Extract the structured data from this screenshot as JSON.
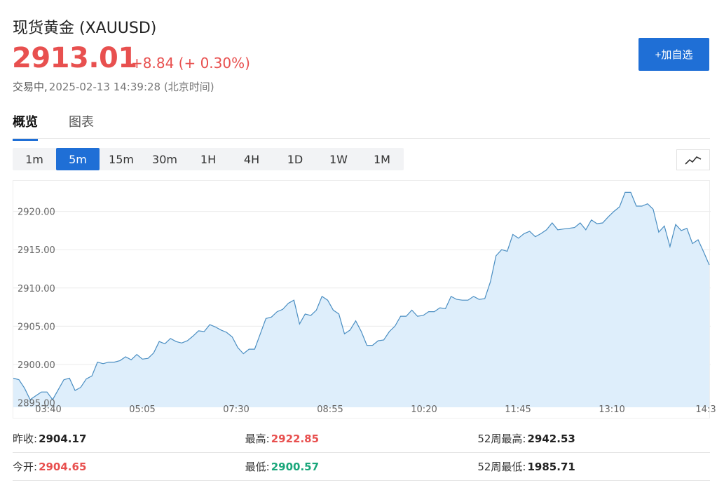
{
  "header": {
    "title": "现货黄金 (XAUUSD)",
    "price": "2913.01",
    "change": "+8.84 (+ 0.30%)",
    "status": "交易中,",
    "timestamp": "2025-02-13 14:39:28 (北京时间)",
    "add_watchlist_label": "+加自选"
  },
  "tabs": [
    {
      "label": "概览",
      "active": true
    },
    {
      "label": "图表",
      "active": false
    }
  ],
  "intervals": [
    {
      "label": "1m",
      "active": false
    },
    {
      "label": "5m",
      "active": true
    },
    {
      "label": "15m",
      "active": false
    },
    {
      "label": "30m",
      "active": false
    },
    {
      "label": "1H",
      "active": false
    },
    {
      "label": "4H",
      "active": false
    },
    {
      "label": "1D",
      "active": false
    },
    {
      "label": "1W",
      "active": false
    },
    {
      "label": "1M",
      "active": false
    }
  ],
  "chart_type_icon": "line-chart-icon",
  "colors": {
    "up": "#e8504f",
    "down": "#1aa77b",
    "accent": "#1f6fd6",
    "line": "#4a8ec2",
    "area": "#deeefb"
  },
  "chart_data": {
    "type": "area",
    "x_ticks": [
      "03:40",
      "05:05",
      "07:30",
      "08:55",
      "10:20",
      "11:45",
      "13:10",
      "14:3"
    ],
    "y_ticks": [
      "2895.00",
      "2900.00",
      "2905.00",
      "2910.00",
      "2915.00",
      "2920.00"
    ],
    "ylim": [
      2894.4,
      2924.0
    ],
    "grid": true,
    "values": [
      2898.2,
      2898.0,
      2896.9,
      2895.4,
      2895.9,
      2896.4,
      2896.4,
      2895.4,
      2896.7,
      2898.0,
      2898.2,
      2896.6,
      2897.0,
      2898.1,
      2898.5,
      2900.3,
      2900.1,
      2900.3,
      2900.3,
      2900.5,
      2901.0,
      2900.6,
      2901.3,
      2900.7,
      2900.8,
      2901.5,
      2903.0,
      2902.7,
      2903.4,
      2903.0,
      2902.8,
      2903.1,
      2903.7,
      2904.4,
      2904.3,
      2905.2,
      2904.9,
      2904.5,
      2904.2,
      2903.6,
      2902.2,
      2901.4,
      2902.0,
      2902.0,
      2904.0,
      2906.0,
      2906.2,
      2906.9,
      2907.2,
      2908.0,
      2908.4,
      2905.3,
      2906.6,
      2906.4,
      2907.1,
      2908.9,
      2908.4,
      2907.1,
      2906.6,
      2904.0,
      2904.5,
      2905.7,
      2904.3,
      2902.5,
      2902.5,
      2903.1,
      2903.2,
      2904.3,
      2905.0,
      2906.3,
      2906.3,
      2907.1,
      2906.3,
      2906.4,
      2906.9,
      2906.9,
      2907.4,
      2907.3,
      2908.9,
      2908.5,
      2908.4,
      2908.4,
      2908.9,
      2908.5,
      2908.6,
      2910.8,
      2914.2,
      2915.0,
      2914.8,
      2917.0,
      2916.5,
      2917.1,
      2917.4,
      2916.7,
      2917.1,
      2917.6,
      2918.5,
      2917.6,
      2917.7,
      2917.8,
      2917.9,
      2918.5,
      2917.6,
      2918.9,
      2918.4,
      2918.5,
      2919.3,
      2920.0,
      2920.6,
      2922.5,
      2922.5,
      2920.7,
      2920.7,
      2921.0,
      2920.3,
      2917.3,
      2918.1,
      2915.4,
      2918.3,
      2917.5,
      2917.8,
      2915.8,
      2916.3,
      2914.7,
      2913.0
    ]
  },
  "stats": [
    [
      {
        "label": "昨收:",
        "value": "2904.17",
        "tone": "neutral"
      },
      {
        "label": "最高:",
        "value": "2922.85",
        "tone": "up"
      },
      {
        "label": "52周最高:",
        "value": "2942.53",
        "tone": "neutral"
      }
    ],
    [
      {
        "label": "今开:",
        "value": "2904.65",
        "tone": "up"
      },
      {
        "label": "最低:",
        "value": "2900.57",
        "tone": "down"
      },
      {
        "label": "52周最低:",
        "value": "1985.71",
        "tone": "neutral"
      }
    ]
  ]
}
